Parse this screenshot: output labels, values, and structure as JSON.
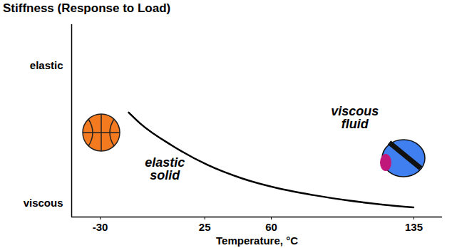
{
  "chart_data": {
    "type": "line",
    "title": "Stiffness (Response to Load)",
    "x_label": "Temperature, °C",
    "x": [
      -15,
      -8.9,
      7.8,
      26.3,
      44.8,
      63.3,
      81.9,
      100.4,
      118.9,
      134.8
    ],
    "values": [
      0.66,
      0.58,
      0.42,
      0.28,
      0.18,
      0.11,
      0.06,
      0.02,
      -0.01,
      -0.03
    ],
    "color": "#000000",
    "xlim": [
      -45,
      150
    ],
    "xticks": [
      -30,
      25,
      60,
      135
    ],
    "ylim": [
      -0.1,
      1.3
    ],
    "yticks": [
      {
        "value": 1,
        "label": "elastic"
      },
      {
        "value": 0,
        "label": "viscous"
      }
    ],
    "grid": false,
    "annotations": [
      {
        "text": "elastic solid",
        "x": 4,
        "y": 0.25
      },
      {
        "text": "viscous fluid",
        "x": 104,
        "y": 0.62
      }
    ]
  }
}
